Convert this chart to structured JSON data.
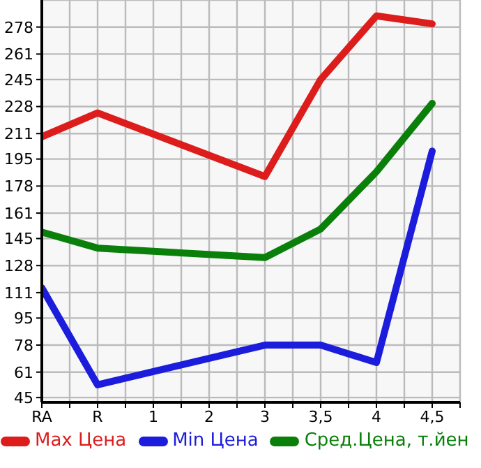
{
  "chart_data": {
    "type": "line",
    "categories": [
      "RA",
      "R",
      "1",
      "2",
      "3",
      "3,5",
      "4",
      "4,5"
    ],
    "series": [
      {
        "name": "Max Цена",
        "color": "#dd1c1c",
        "values": [
          209,
          224,
          null,
          null,
          184,
          245,
          285,
          280
        ]
      },
      {
        "name": "Min Цена",
        "color": "#1c1cdd",
        "values": [
          114,
          53,
          null,
          null,
          78,
          78,
          67,
          200
        ]
      },
      {
        "name": "Сред.Цена, т.йен",
        "color": "#0a800a",
        "values": [
          149,
          139,
          null,
          null,
          133,
          151,
          187,
          230
        ]
      }
    ],
    "ylim": [
      42,
      295
    ],
    "yticks": [
      45,
      61,
      78,
      95,
      111,
      128,
      145,
      161,
      178,
      195,
      211,
      228,
      245,
      261,
      278
    ],
    "grid": true,
    "legend": "bottom",
    "marker": "none",
    "line_style": "solid"
  }
}
